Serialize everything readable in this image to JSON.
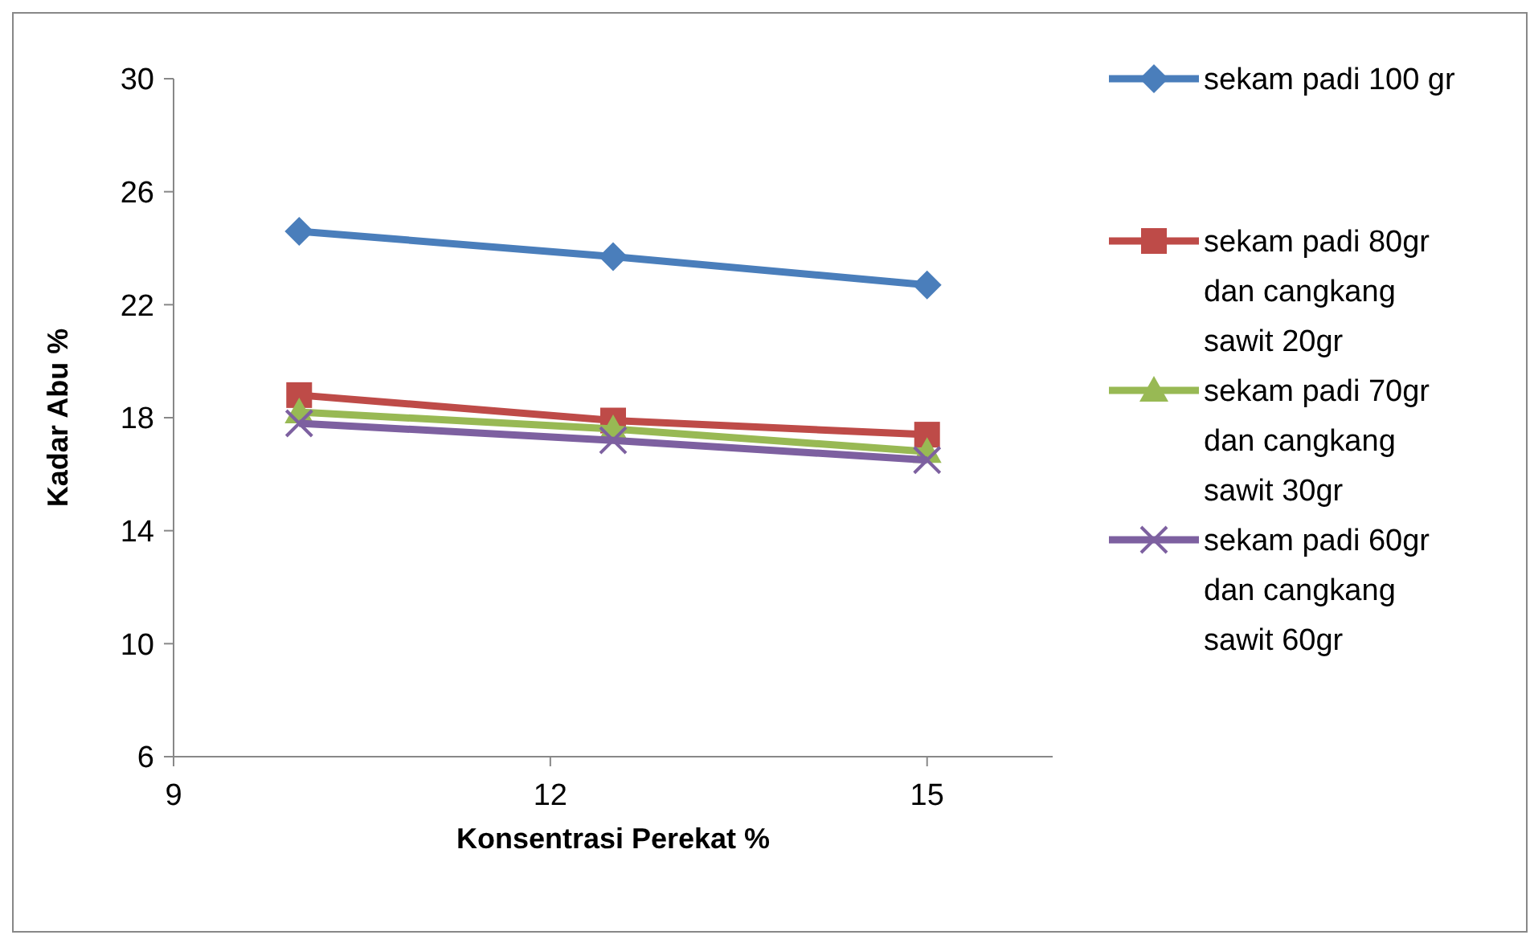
{
  "chart_data": {
    "type": "line",
    "xlabel": "Konsentrasi Perekat %",
    "ylabel": "Kadar Abu %",
    "x": [
      10,
      12.5,
      15
    ],
    "xlim": [
      9,
      16
    ],
    "xticks": [
      9,
      12,
      15
    ],
    "ylim": [
      6,
      30
    ],
    "yticks": [
      6,
      10,
      14,
      18,
      22,
      26,
      30
    ],
    "grid": false,
    "legend": "right",
    "line_style": "solid",
    "series": [
      {
        "name": "sekam padi 100 gr",
        "color": "#4a7ebb",
        "marker": "diamond",
        "values": [
          24.6,
          23.7,
          22.7
        ]
      },
      {
        "name": "sekam padi 80gr dan cangkang sawit 20gr",
        "color": "#be4b48",
        "marker": "square",
        "values": [
          18.8,
          17.9,
          17.4
        ]
      },
      {
        "name": "sekam padi 70gr dan cangkang sawit 30gr",
        "color": "#98b954",
        "marker": "triangle",
        "values": [
          18.2,
          17.6,
          16.8
        ]
      },
      {
        "name": "sekam padi 60gr dan cangkang sawit 60gr",
        "color": "#7d60a0",
        "marker": "cross",
        "values": [
          17.8,
          17.2,
          16.5
        ]
      }
    ]
  }
}
